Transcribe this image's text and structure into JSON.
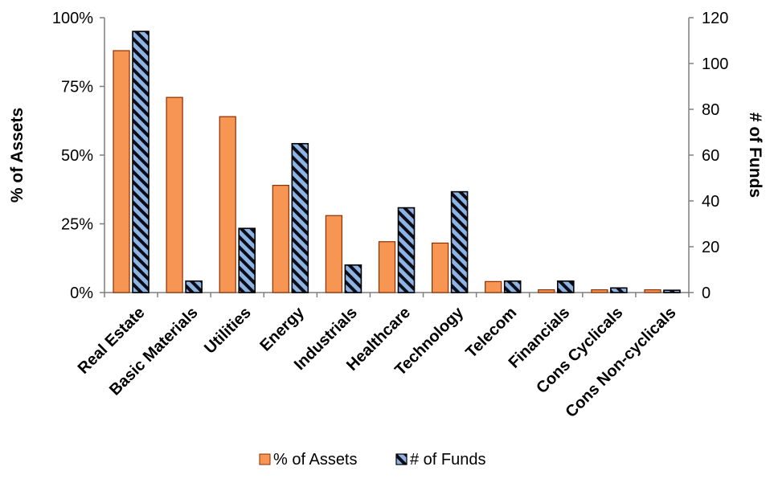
{
  "chart_data": {
    "type": "bar",
    "categories": [
      "Real Estate",
      "Basic Materials",
      "Utilities",
      "Energy",
      "Industrials",
      "Healthcare",
      "Technology",
      "Telecom",
      "Financials",
      "Cons Cyclicals",
      "Cons Non-cyclicals"
    ],
    "series": [
      {
        "name": "% of Assets",
        "axis": "left",
        "color": "#F79552",
        "values": [
          88,
          71,
          64,
          39,
          28,
          18.5,
          18,
          4,
          1,
          1,
          1
        ]
      },
      {
        "name": "# of Funds",
        "axis": "right",
        "color": "#8EB4E3",
        "pattern": "diagonal-hatch-dark",
        "values": [
          114,
          5,
          28,
          65,
          12,
          37,
          44,
          5,
          5,
          2,
          1
        ]
      }
    ],
    "y_left": {
      "label": "% of Assets",
      "ylim": [
        0,
        100
      ],
      "ticks": [
        "0%",
        "25%",
        "50%",
        "75%",
        "100%"
      ]
    },
    "y_right": {
      "label": "# of Funds",
      "ylim": [
        0,
        120
      ],
      "ticks": [
        "0",
        "20",
        "40",
        "60",
        "80",
        "100",
        "120"
      ]
    },
    "legend_position": "bottom",
    "grid": false
  }
}
